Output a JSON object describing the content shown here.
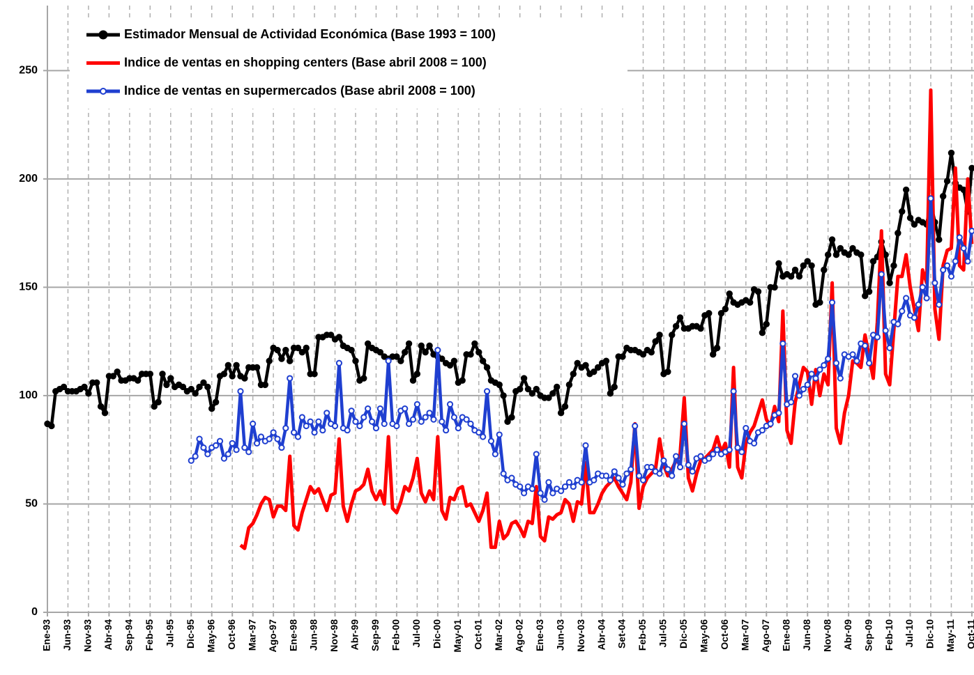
{
  "chart_data": {
    "type": "line",
    "categories": [
      "Ene-93",
      null,
      null,
      null,
      null,
      "Jun-93",
      null,
      null,
      null,
      null,
      "Nov-93",
      null,
      null,
      null,
      null,
      "Abr-94",
      null,
      null,
      null,
      null,
      "Sep-94",
      null,
      null,
      null,
      null,
      "Feb-95",
      null,
      null,
      null,
      null,
      "Jul-95",
      null,
      null,
      null,
      null,
      "Dic-95",
      null,
      null,
      null,
      null,
      "May-96",
      null,
      null,
      null,
      null,
      "Oct-96",
      null,
      null,
      null,
      null,
      "Mar-97",
      null,
      null,
      null,
      null,
      "Ago-97",
      null,
      null,
      null,
      null,
      "Ene-98",
      null,
      null,
      null,
      null,
      "Jun-98",
      null,
      null,
      null,
      null,
      "Nov-98",
      null,
      null,
      null,
      null,
      "Abr-99",
      null,
      null,
      null,
      null,
      "Sep-99",
      null,
      null,
      null,
      null,
      "Feb-00",
      null,
      null,
      null,
      null,
      "Jul-00",
      null,
      null,
      null,
      null,
      "Dic-00",
      null,
      null,
      null,
      null,
      "May-01",
      null,
      null,
      null,
      null,
      "Oct-01",
      null,
      null,
      null,
      null,
      "Mar-02",
      null,
      null,
      null,
      null,
      "Ago-02",
      null,
      null,
      null,
      null,
      "Ene-03",
      null,
      null,
      null,
      null,
      "Jun-03",
      null,
      null,
      null,
      null,
      "Nov-03",
      null,
      null,
      null,
      null,
      "Abr-04",
      null,
      null,
      null,
      null,
      "Set-04",
      null,
      null,
      null,
      null,
      "Feb-05",
      null,
      null,
      null,
      null,
      "Jul-05",
      null,
      null,
      null,
      null,
      "Dic-05",
      null,
      null,
      null,
      null,
      "May-06",
      null,
      null,
      null,
      null,
      "Oct-06",
      null,
      null,
      null,
      null,
      "Mar-07",
      null,
      null,
      null,
      null,
      "Ago-07",
      null,
      null,
      null,
      null,
      "Ene-08",
      null,
      null,
      null,
      null,
      "Jun-08",
      null,
      null,
      null,
      null,
      "Nov-08",
      null,
      null,
      null,
      null,
      "Abr-09",
      null,
      null,
      null,
      null,
      "Sep-09",
      null,
      null,
      null,
      null,
      "Feb-10",
      null,
      null,
      null,
      null,
      "Jul-10",
      null,
      null,
      null,
      null,
      "Dic-10",
      null,
      null,
      null,
      null,
      "May-11",
      null,
      null,
      null,
      null,
      "Oct-11"
    ],
    "series": [
      {
        "name": "Estimador Mensual de Actividad Económica  (Base 1993 = 100)",
        "color": "#000000",
        "marker": "filled",
        "values": [
          87,
          86,
          102,
          103,
          104,
          102,
          102,
          102,
          103,
          104,
          101,
          106,
          106,
          95,
          92,
          109,
          109,
          111,
          107,
          107,
          108,
          108,
          107,
          110,
          110,
          110,
          95,
          97,
          110,
          105,
          108,
          104,
          105,
          104,
          102,
          103,
          101,
          104,
          106,
          104,
          94,
          97,
          109,
          110,
          114,
          109,
          114,
          109,
          108,
          113,
          113,
          113,
          105,
          105,
          116,
          122,
          121,
          117,
          121,
          116,
          122,
          122,
          120,
          122,
          110,
          110,
          127,
          127,
          128,
          128,
          126,
          127,
          123,
          122,
          121,
          116,
          107,
          108,
          124,
          122,
          121,
          120,
          118,
          117,
          118,
          118,
          116,
          120,
          124,
          107,
          110,
          123,
          120,
          123,
          119,
          118,
          117,
          115,
          114,
          116,
          106,
          107,
          119,
          119,
          124,
          120,
          116,
          113,
          107,
          106,
          105,
          100,
          88,
          90,
          102,
          103,
          108,
          103,
          101,
          103,
          100,
          99,
          99,
          101,
          104,
          92,
          95,
          105,
          110,
          115,
          113,
          114,
          110,
          111,
          113,
          115,
          116,
          101,
          104,
          118,
          118,
          122,
          121,
          121,
          120,
          119,
          121,
          120,
          125,
          128,
          110,
          111,
          128,
          132,
          136,
          131,
          131,
          132,
          132,
          131,
          137,
          138,
          119,
          122,
          138,
          140,
          147,
          143,
          142,
          143,
          144,
          143,
          149,
          148,
          129,
          133,
          150,
          150,
          161,
          155,
          156,
          155,
          158,
          155,
          160,
          162,
          160,
          142,
          143,
          158,
          165,
          172,
          165,
          168,
          166,
          165,
          168,
          166,
          165,
          146,
          148,
          162,
          164,
          171,
          165,
          152,
          160,
          175,
          185,
          195,
          182,
          179,
          181,
          180,
          179,
          189,
          180,
          172,
          192,
          199,
          212,
          198,
          196,
          195,
          185,
          205
        ]
      },
      {
        "name": "Indice de ventas en shopping centers (Base abril 2008 = 100)",
        "color": "#ff0000",
        "marker": "none",
        "values": [
          null,
          null,
          null,
          null,
          null,
          null,
          null,
          null,
          null,
          null,
          null,
          null,
          null,
          null,
          null,
          null,
          null,
          null,
          null,
          null,
          null,
          null,
          null,
          null,
          null,
          null,
          null,
          null,
          null,
          null,
          null,
          null,
          null,
          null,
          null,
          null,
          null,
          null,
          null,
          null,
          null,
          null,
          null,
          null,
          null,
          null,
          null,
          31,
          29.5,
          39,
          41,
          45,
          50,
          53,
          52,
          44,
          49,
          49,
          47,
          72,
          40,
          38,
          46,
          52,
          58,
          55,
          57,
          52,
          47,
          54,
          55,
          80,
          49,
          42,
          50,
          56,
          57,
          59,
          66,
          56,
          52,
          56,
          50,
          81,
          48,
          46,
          51,
          58,
          56,
          62,
          71,
          55,
          51,
          56,
          52,
          81,
          47,
          43,
          53,
          52,
          57,
          58,
          49,
          50,
          46,
          42,
          47,
          55,
          30,
          30,
          42,
          34,
          36,
          41,
          42,
          39,
          35,
          42,
          41,
          58,
          35,
          33,
          44,
          43,
          45,
          46,
          52,
          50,
          42,
          51,
          50,
          69,
          46,
          46,
          50,
          55,
          58,
          60,
          62,
          58,
          55,
          52,
          60,
          87,
          48,
          58,
          62,
          64,
          66,
          80,
          68,
          63,
          66,
          70,
          73,
          99,
          62,
          56,
          64,
          70,
          71,
          73,
          75,
          81,
          74,
          78,
          67,
          113,
          67,
          62,
          78,
          83,
          86,
          92,
          98,
          89,
          86,
          95,
          88,
          139,
          84,
          78,
          97,
          105,
          113,
          111,
          96,
          112,
          100,
          110,
          105,
          152,
          85,
          78,
          92,
          100,
          116,
          115,
          113,
          128,
          118,
          108,
          134,
          176,
          110,
          105,
          130,
          155,
          155,
          165,
          150,
          140,
          130,
          158,
          152,
          241,
          140,
          126,
          160,
          167,
          168,
          205,
          160,
          158,
          200,
          170
        ]
      },
      {
        "name": "Indice de ventas en supermercados (Base abril 2008 = 100)",
        "color": "#1f3fd0",
        "marker": "open",
        "values": [
          null,
          null,
          null,
          null,
          null,
          null,
          null,
          null,
          null,
          null,
          null,
          null,
          null,
          null,
          null,
          null,
          null,
          null,
          null,
          null,
          null,
          null,
          null,
          null,
          null,
          null,
          null,
          null,
          null,
          null,
          null,
          null,
          null,
          null,
          null,
          70,
          72,
          80,
          76,
          73,
          76,
          77,
          79,
          71,
          73,
          78,
          75,
          102,
          76,
          74,
          87,
          78,
          81,
          79,
          80,
          83,
          80,
          76,
          85,
          108,
          83,
          81,
          90,
          86,
          88,
          83,
          88,
          84,
          92,
          87,
          86,
          115,
          85,
          84,
          93,
          88,
          86,
          90,
          94,
          88,
          85,
          94,
          87,
          116,
          87,
          86,
          93,
          94,
          87,
          89,
          96,
          88,
          90,
          92,
          89,
          121,
          88,
          84,
          96,
          90,
          85,
          90,
          89,
          87,
          84,
          83,
          81,
          102,
          79,
          73,
          82,
          64,
          61,
          62,
          59,
          58,
          55,
          58,
          57,
          73,
          55,
          52,
          60,
          55,
          57,
          56,
          58,
          60,
          58,
          61,
          60,
          77,
          60,
          61,
          64,
          63,
          63,
          61,
          65,
          62,
          59,
          64,
          66,
          86,
          63,
          61,
          67,
          67,
          65,
          64,
          70,
          66,
          63,
          72,
          67,
          87,
          68,
          65,
          71,
          72,
          70,
          71,
          73,
          75,
          73,
          74,
          75,
          102,
          76,
          74,
          85,
          79,
          78,
          83,
          84,
          86,
          87,
          91,
          92,
          124,
          96,
          97,
          109,
          100,
          103,
          105,
          110,
          108,
          112,
          114,
          117,
          143,
          115,
          108,
          119,
          118,
          119,
          116,
          124,
          123,
          115,
          128,
          127,
          156,
          130,
          122,
          134,
          133,
          139,
          145,
          137,
          136,
          142,
          150,
          145,
          191,
          152,
          142,
          158,
          160,
          155,
          162,
          173,
          168,
          162,
          176
        ]
      }
    ],
    "ylim": [
      0,
      280
    ],
    "yticks": [
      0,
      50,
      100,
      150,
      200,
      250
    ],
    "grid": true,
    "legend": "upper left"
  }
}
